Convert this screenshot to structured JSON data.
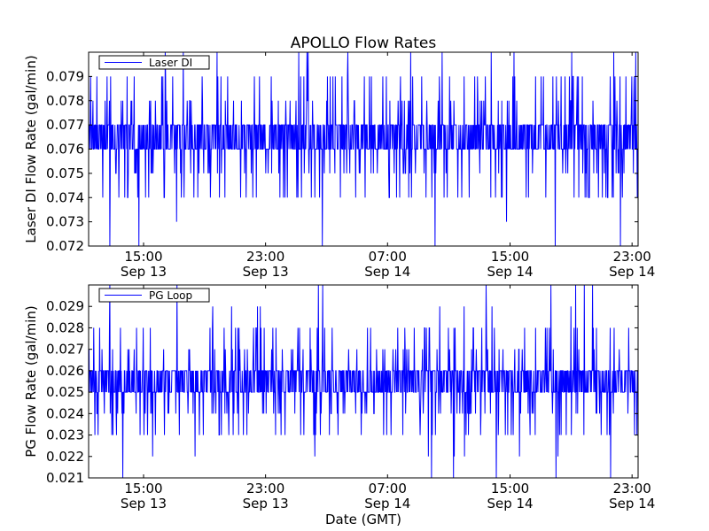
{
  "figure": {
    "title": "APOLLO Flow Rates",
    "xlabel": "Date (GMT)"
  },
  "chart_data": [
    {
      "type": "line",
      "title": "APOLLO Flow Rates",
      "ylabel": "Laser DI Flow Rate (gal/min)",
      "legend": "top-left",
      "grid": false,
      "x_range": [
        "Sep 13 10:20",
        "Sep 14 23:40"
      ],
      "x_ticks": [
        {
          "time": "15:00",
          "date": "Sep 13"
        },
        {
          "time": "23:00",
          "date": "Sep 13"
        },
        {
          "time": "07:00",
          "date": "Sep 14"
        },
        {
          "time": "15:00",
          "date": "Sep 14"
        },
        {
          "time": "23:00",
          "date": "Sep 14"
        }
      ],
      "ylim": [
        0.072,
        0.08
      ],
      "y_ticks": [
        "0.072",
        "0.073",
        "0.074",
        "0.075",
        "0.076",
        "0.077",
        "0.078",
        "0.079"
      ],
      "series": [
        {
          "name": "Laser DI",
          "color": "#0000ff",
          "baseline": [
            0.076,
            0.077
          ],
          "levels": [
            0.072,
            0.073,
            0.074,
            0.075,
            0.076,
            0.077,
            0.078,
            0.079,
            0.08
          ],
          "min_observed": 0.072,
          "max_observed": 0.08
        }
      ]
    },
    {
      "type": "line",
      "title": "",
      "ylabel": "PG Flow Rate (gal/min)",
      "xlabel": "Date (GMT)",
      "legend": "top-left",
      "grid": false,
      "x_range": [
        "Sep 13 10:20",
        "Sep 14 23:40"
      ],
      "x_ticks": [
        {
          "time": "15:00",
          "date": "Sep 13"
        },
        {
          "time": "23:00",
          "date": "Sep 13"
        },
        {
          "time": "07:00",
          "date": "Sep 14"
        },
        {
          "time": "15:00",
          "date": "Sep 14"
        },
        {
          "time": "23:00",
          "date": "Sep 14"
        }
      ],
      "ylim": [
        0.021,
        0.03
      ],
      "y_ticks": [
        "0.021",
        "0.022",
        "0.023",
        "0.024",
        "0.025",
        "0.026",
        "0.027",
        "0.028",
        "0.029"
      ],
      "series": [
        {
          "name": "PG Loop",
          "color": "#0000ff",
          "baseline": [
            0.025,
            0.026
          ],
          "levels": [
            0.021,
            0.022,
            0.023,
            0.024,
            0.025,
            0.026,
            0.027,
            0.028,
            0.029,
            0.03
          ],
          "min_observed": 0.021,
          "max_observed": 0.03
        }
      ]
    }
  ]
}
